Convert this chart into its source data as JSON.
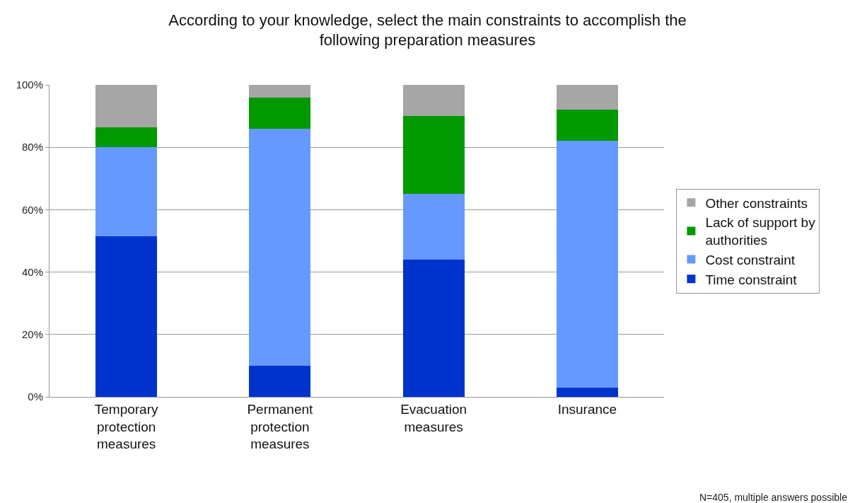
{
  "chart_data": {
    "type": "bar",
    "stacked": true,
    "title": "According to your knowledge, select the main constraints to accomplish the following preparation measures",
    "categories": [
      "Temporary protection measures",
      "Permanent protection measures",
      "Evacuation measures",
      "Insurance"
    ],
    "series": [
      {
        "name": "Time constraint",
        "color": "#0033cc",
        "values": [
          51.5,
          10,
          44,
          3
        ]
      },
      {
        "name": "Cost constraint",
        "color": "#6699ff",
        "values": [
          28.5,
          76,
          21,
          79
        ]
      },
      {
        "name": "Lack of support by authorities",
        "color": "#009900",
        "values": [
          6.5,
          10,
          25,
          10
        ]
      },
      {
        "name": "Other constraints",
        "color": "#a6a6a6",
        "values": [
          13.5,
          4,
          10,
          8
        ]
      }
    ],
    "ylim": [
      0,
      100
    ],
    "yticks": [
      {
        "value": 0,
        "label": "0%"
      },
      {
        "value": 20,
        "label": "20%"
      },
      {
        "value": 40,
        "label": "40%"
      },
      {
        "value": 60,
        "label": "60%"
      },
      {
        "value": 80,
        "label": "80%"
      },
      {
        "value": 100,
        "label": "100%"
      }
    ],
    "grid": "y",
    "legend": "right",
    "annotations": [
      "N=405, multiple answers possible"
    ]
  }
}
